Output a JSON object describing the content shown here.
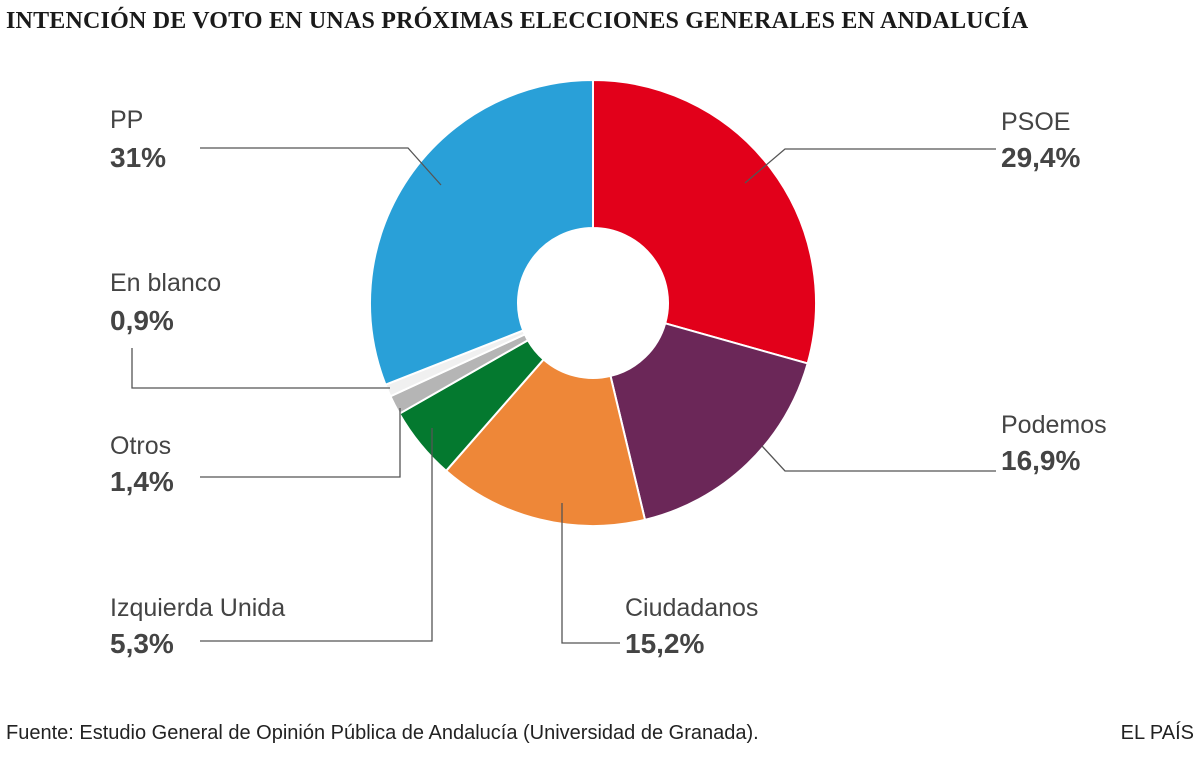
{
  "title": "INTENCIÓN DE VOTO EN UNAS PRÓXIMAS ELECCIONES GENERALES EN ANDALUCÍA",
  "source": "Fuente: Estudio General de Opinión Pública de Andalucía (Universidad de Granada).",
  "brand": "EL PAÍS",
  "chart_data": {
    "type": "pie",
    "donut": true,
    "start": "12 o'clock",
    "direction": "clockwise",
    "slices": [
      {
        "key": "psoe",
        "label": "PSOE",
        "value_label": "29,4%",
        "value": 29.4,
        "color": "#e2001a"
      },
      {
        "key": "podemos",
        "label": "Podemos",
        "value_label": "16,9%",
        "value": 16.9,
        "color": "#6b2758"
      },
      {
        "key": "ciudadanos",
        "label": "Ciudadanos",
        "value_label": "15,2%",
        "value": 15.2,
        "color": "#ee8738"
      },
      {
        "key": "iu",
        "label": "Izquierda Unida",
        "value_label": "5,3%",
        "value": 5.3,
        "color": "#04792f"
      },
      {
        "key": "otros",
        "label": "Otros",
        "value_label": "1,4%",
        "value": 1.4,
        "color": "#b5b5b5"
      },
      {
        "key": "blanco",
        "label": "En blanco",
        "value_label": "0,9%",
        "value": 0.9,
        "color": "#f0f0f0"
      },
      {
        "key": "pp",
        "label": "PP",
        "value_label": "31%",
        "value": 31,
        "color": "#29a0d8"
      }
    ]
  }
}
